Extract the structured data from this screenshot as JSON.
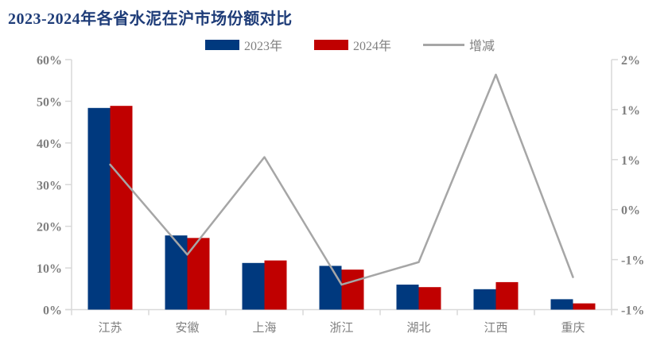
{
  "title": "2023-2024年各省水泥在沪市场份额对比",
  "legend": [
    {
      "label": "2023年",
      "color": "#00397e",
      "swatch": "box"
    },
    {
      "label": "2024年",
      "color": "#c00000",
      "swatch": "box"
    },
    {
      "label": "增减",
      "color": "#a6a6a6",
      "swatch": "line"
    }
  ],
  "colors": {
    "bar_2023": "#00397e",
    "bar_2024": "#c00000",
    "change_line": "#a6a6a6",
    "axis": "#d9d9d9",
    "label_text": "#7f7f7f",
    "title_text": "#1e3c78",
    "background": "#ffffff"
  },
  "chart_data": {
    "type": "bar",
    "subtype": "grouped-bars-with-line",
    "title": "2023-2024年各省水泥在沪市场份额对比",
    "categories": [
      "江苏",
      "安徽",
      "上海",
      "浙江",
      "湖北",
      "江西",
      "重庆"
    ],
    "series": [
      {
        "name": "2023年",
        "type": "bar",
        "axis": "left",
        "color": "#00397e",
        "values": [
          48.4,
          17.8,
          11.2,
          10.5,
          6.0,
          4.9,
          2.5
        ]
      },
      {
        "name": "2024年",
        "type": "bar",
        "axis": "left",
        "color": "#c00000",
        "values": [
          48.9,
          17.2,
          11.8,
          9.6,
          5.4,
          6.6,
          1.5
        ]
      },
      {
        "name": "增减",
        "type": "line",
        "axis": "right",
        "color": "#a6a6a6",
        "values": [
          0.6,
          -0.6,
          0.7,
          -1.0,
          -0.7,
          1.8,
          -0.9
        ]
      }
    ],
    "left_axis": {
      "min": 0,
      "max": 60,
      "tick_labels": [
        "60%",
        "50%",
        "40%",
        "30%",
        "20%",
        "10%",
        "0%"
      ]
    },
    "right_axis": {
      "min": -1.3333,
      "max": 2,
      "tick_labels": [
        "2%",
        "1%",
        "1%",
        "0%",
        "-1%",
        "-1%"
      ]
    },
    "grid": false,
    "legend_position": "top-center"
  }
}
